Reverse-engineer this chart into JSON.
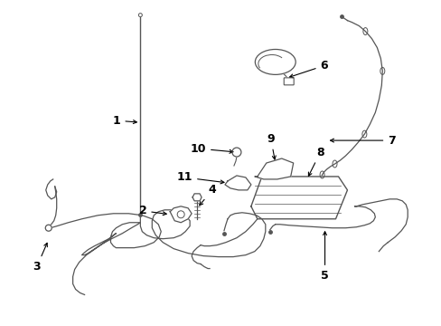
{
  "bg_color": "#ffffff",
  "line_color": "#555555",
  "label_color": "#000000",
  "label_fontsize": 9,
  "lw": 1.0
}
